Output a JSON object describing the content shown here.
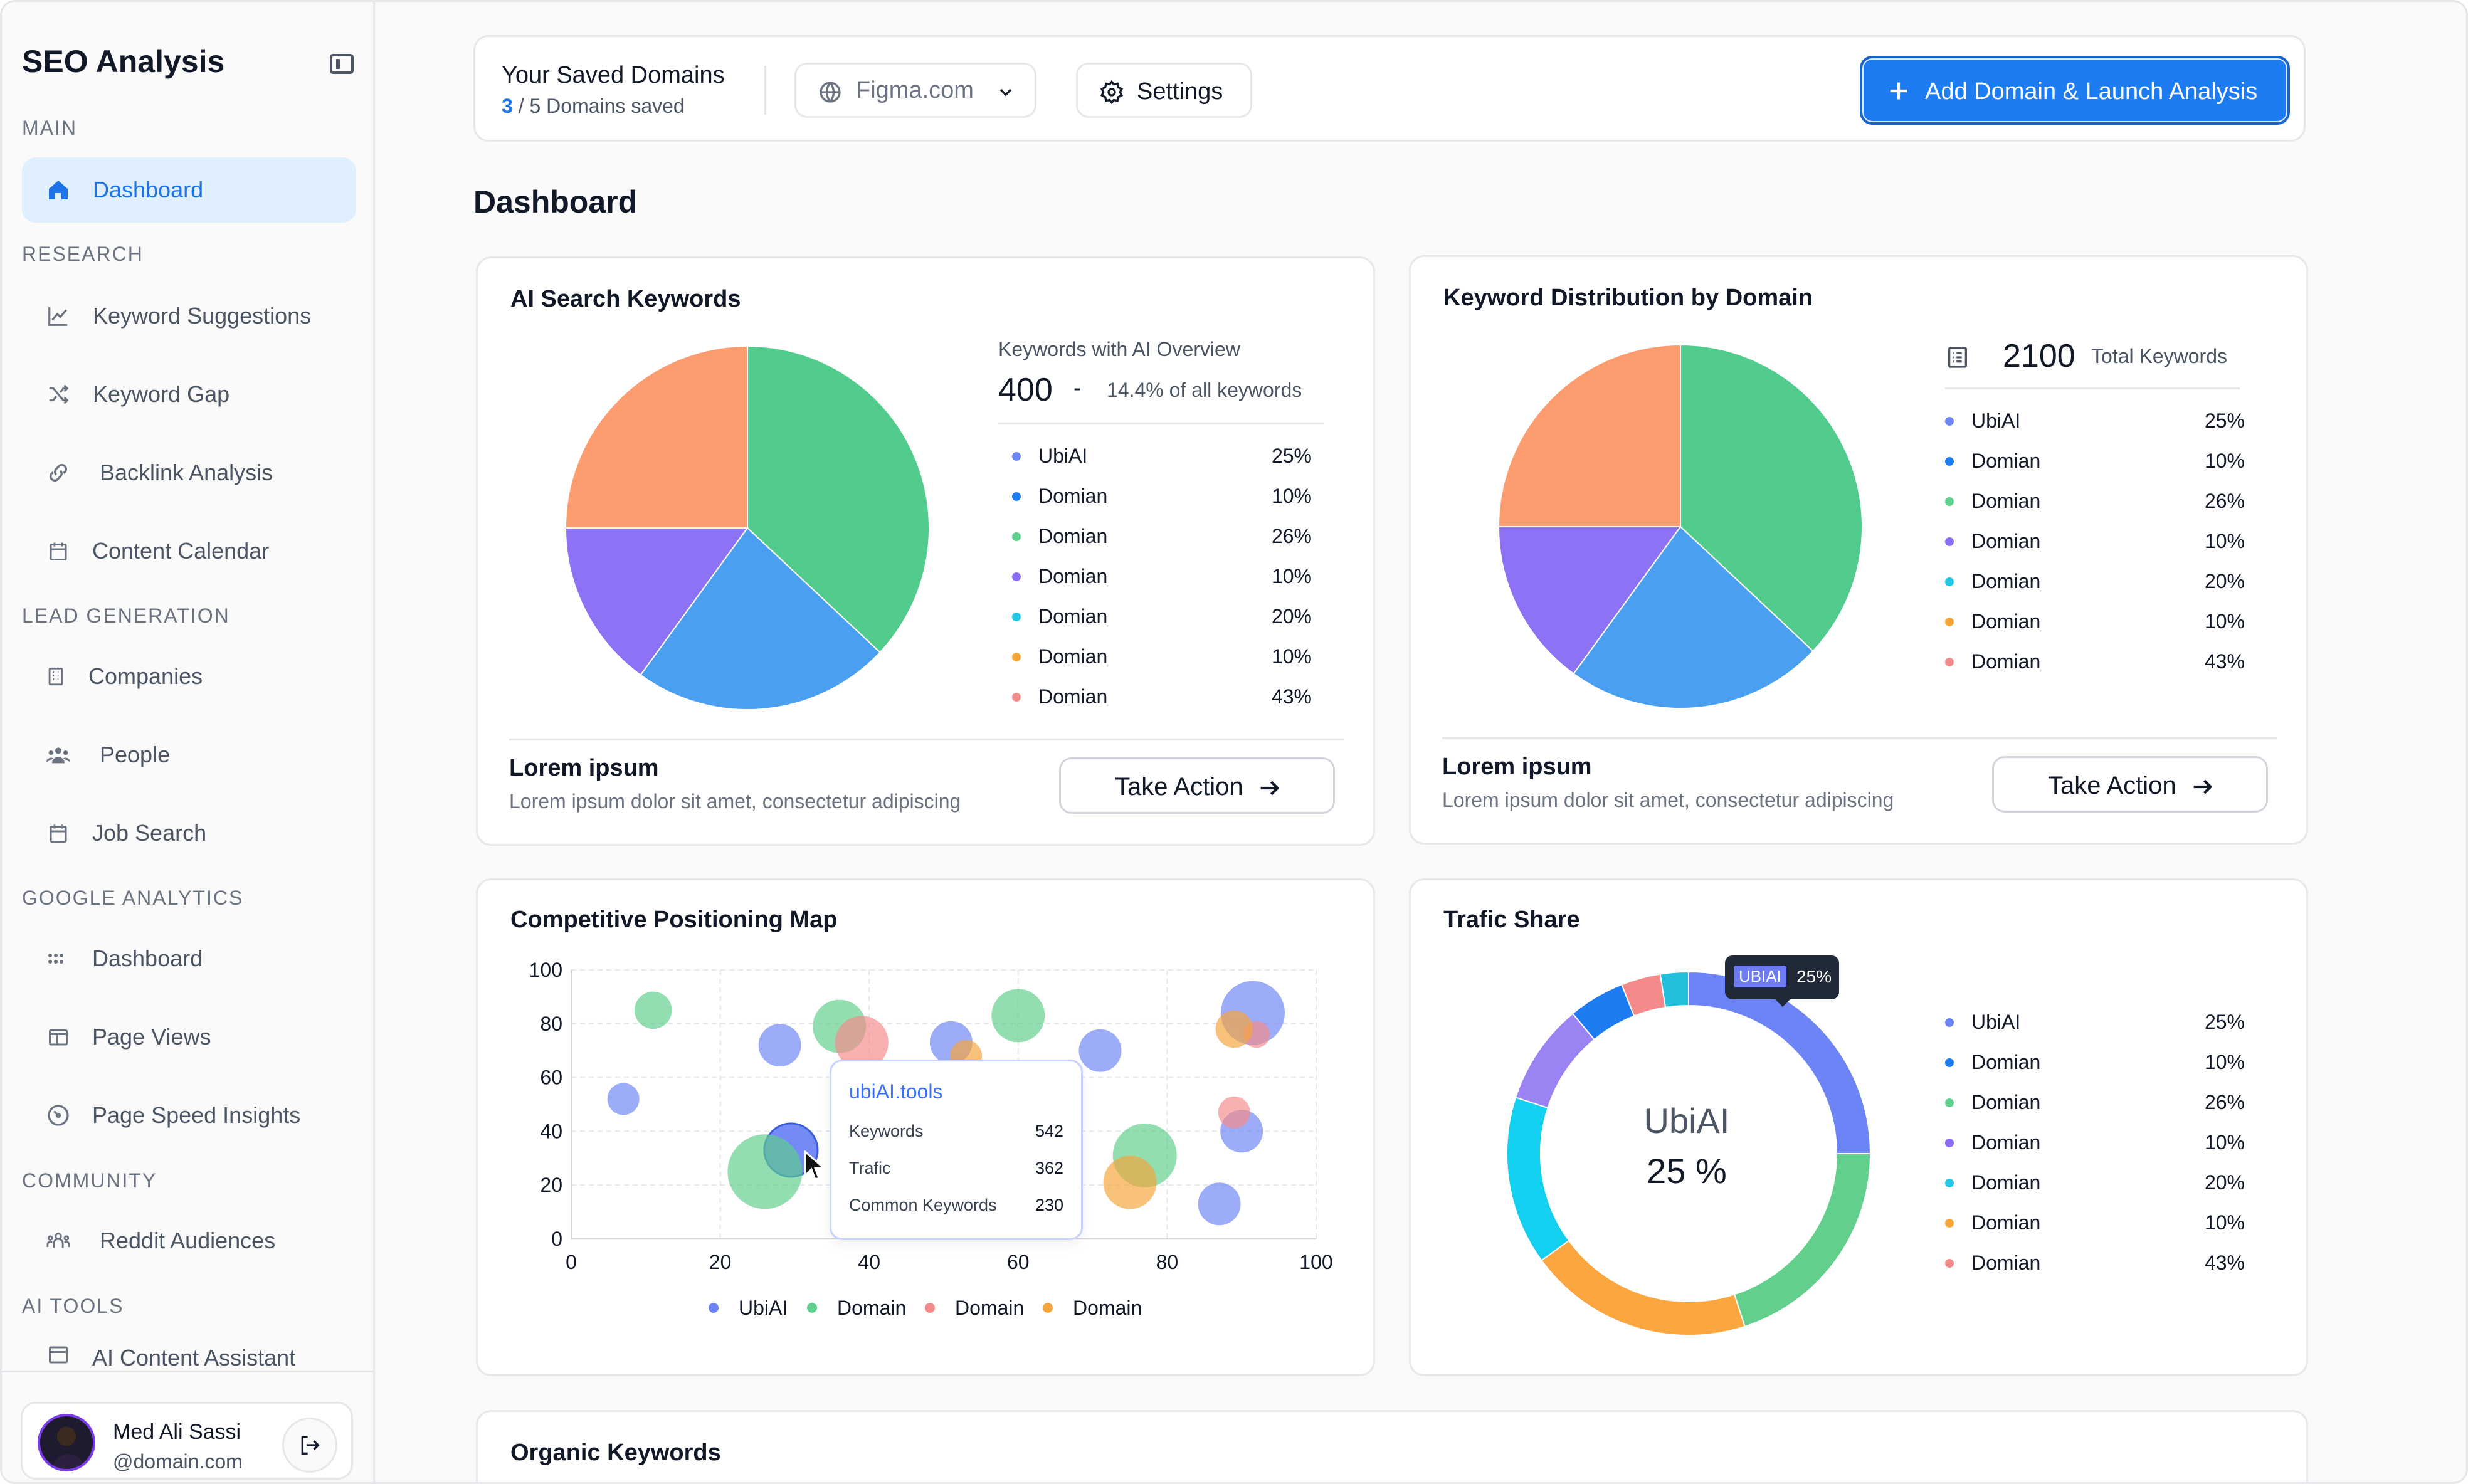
{
  "sidebar": {
    "title": "SEO Analysis",
    "sections": {
      "main": "MAIN",
      "research": "RESEARCH",
      "lead": "LEAD GENERATION",
      "ga": "GOOGLE ANALYTICS",
      "community": "COMMUNITY",
      "ai": "AI TOOLS"
    },
    "items": {
      "dashboard": "Dashboard",
      "keyword_suggestions": "Keyword Suggestions",
      "keyword_gap": "Keyword Gap",
      "backlink_analysis": "Backlink Analysis",
      "content_calendar": "Content Calendar",
      "companies": "Companies",
      "people": "People",
      "job_search": "Job Search",
      "ga_dashboard": "Dashboard",
      "page_views": "Page Views",
      "page_speed": "Page Speed Insights",
      "reddit": "Reddit Audiences",
      "ai_content": "AI Content Assistant"
    },
    "user": {
      "name": "Med Ali Sassi",
      "email": "@domain.com"
    }
  },
  "topbar": {
    "title": "Your Saved Domains",
    "saved_count": "3",
    "saved_rest": " / 5 Domains saved",
    "domain_select": "Figma.com",
    "settings_label": "Settings",
    "primary_label": "Add Domain & Launch Analysis"
  },
  "page_title": "Dashboard",
  "ai_keywords": {
    "title": "AI Search Keywords",
    "caption": "Keywords with AI Overview",
    "value": "400",
    "dash": "-",
    "pct_text": "14.4% of all keywords",
    "footer_title": "Lorem ipsum",
    "footer_sub": "Lorem ipsum dolor sit amet, consectetur adipiscing",
    "action": "Take Action"
  },
  "distribution": {
    "title": "Keyword Distribution by Domain",
    "total_value": "2100",
    "total_label": "Total Keywords",
    "footer_title": "Lorem ipsum",
    "footer_sub": "Lorem ipsum dolor sit amet, consectetur adipiscing",
    "action": "Take Action"
  },
  "legend": [
    {
      "label": "UbiAI",
      "value": "25%",
      "color": "#6d84f6"
    },
    {
      "label": "Domian",
      "value": "10%",
      "color": "#1d7cf2"
    },
    {
      "label": "Domian",
      "value": "26%",
      "color": "#5fcf8c"
    },
    {
      "label": "Domian",
      "value": "10%",
      "color": "#8b6cf6"
    },
    {
      "label": "Domian",
      "value": "20%",
      "color": "#22c8e5"
    },
    {
      "label": "Domian",
      "value": "10%",
      "color": "#f6a53b"
    },
    {
      "label": "Domian",
      "value": "43%",
      "color": "#f58a8a"
    }
  ],
  "competitive": {
    "title": "Competitive Positioning Map",
    "tooltip": {
      "title": "ubiAI.tools",
      "rows": [
        {
          "label": "Keywords",
          "value": "542"
        },
        {
          "label": "Trafic",
          "value": "362"
        },
        {
          "label": "Common Keywords",
          "value": "230"
        }
      ]
    }
  },
  "traffic": {
    "title": "Trafic Share",
    "center_label": "UbiAI",
    "center_value": "25 %",
    "badge_tag": "UBIAI",
    "badge_value": "25%"
  },
  "organic": {
    "title": "Organic Keywords"
  },
  "chart_data": [
    {
      "type": "pie",
      "title": "AI Search Keywords",
      "slices": [
        {
          "label": "green",
          "value": 37,
          "color": "#52cc8c"
        },
        {
          "label": "blue",
          "value": 23,
          "color": "#4b9ff0"
        },
        {
          "label": "purple",
          "value": 15,
          "color": "#8d72f5"
        },
        {
          "label": "orange",
          "value": 25,
          "color": "#fd9c6e"
        }
      ]
    },
    {
      "type": "pie",
      "title": "Keyword Distribution by Domain",
      "slices": [
        {
          "label": "green",
          "value": 37,
          "color": "#52cc8c"
        },
        {
          "label": "blue",
          "value": 23,
          "color": "#4b9ff0"
        },
        {
          "label": "purple",
          "value": 15,
          "color": "#8d72f5"
        },
        {
          "label": "orange",
          "value": 25,
          "color": "#fd9c6e"
        }
      ]
    },
    {
      "type": "scatter",
      "title": "Competitive Positioning Map",
      "xlim": [
        0,
        100
      ],
      "ylim": [
        0,
        100
      ],
      "x_ticks": [
        "0",
        "20",
        "40",
        "60",
        "80",
        "100"
      ],
      "y_ticks": [
        "0",
        "20",
        "40",
        "60",
        "80",
        "100"
      ],
      "series": [
        {
          "name": "UbiAI",
          "color": "#6d84f6",
          "points": [
            [
              7,
              52,
              3
            ],
            [
              28,
              72,
              4
            ],
            [
              29.5,
              33,
              5
            ],
            [
              51,
              73,
              4
            ],
            [
              71,
              70,
              4
            ],
            [
              90,
              40,
              4
            ],
            [
              87,
              13,
              4
            ],
            [
              91.5,
              84,
              6
            ]
          ]
        },
        {
          "name": "Domain",
          "color": "#5fcf8c",
          "points": [
            [
              11,
              85,
              3.5
            ],
            [
              36,
              79,
              5
            ],
            [
              60,
              83,
              5
            ],
            [
              26,
              25,
              7
            ],
            [
              77,
              31,
              6
            ]
          ]
        },
        {
          "name": "Domain",
          "color": "#f58a8a",
          "points": [
            [
              39,
              73,
              5
            ],
            [
              89,
              47,
              3
            ],
            [
              92,
              76,
              2.5
            ]
          ]
        },
        {
          "name": "Domain",
          "color": "#f6a53b",
          "points": [
            [
              53,
              68,
              3
            ],
            [
              75,
              21,
              5
            ],
            [
              89,
              78,
              3.5
            ]
          ]
        }
      ]
    },
    {
      "type": "pie",
      "title": "Trafic Share",
      "donut": true,
      "slices": [
        {
          "label": "UbiAI",
          "value": 25,
          "color": "#6d84f6"
        },
        {
          "label": "Domian",
          "value": 20,
          "color": "#63cf8c"
        },
        {
          "label": "Domian",
          "value": 20,
          "color": "#fca63f"
        },
        {
          "label": "Domian",
          "value": 15,
          "color": "#13d0f0"
        },
        {
          "label": "Domian",
          "value": 9,
          "color": "#9b83f4"
        },
        {
          "label": "Domian",
          "value": 5,
          "color": "#1d7cf2"
        },
        {
          "label": "Domian",
          "value": 3.5,
          "color": "#f58a8a"
        },
        {
          "label": "Domian",
          "value": 2.5,
          "color": "#22bfdc"
        }
      ]
    }
  ]
}
